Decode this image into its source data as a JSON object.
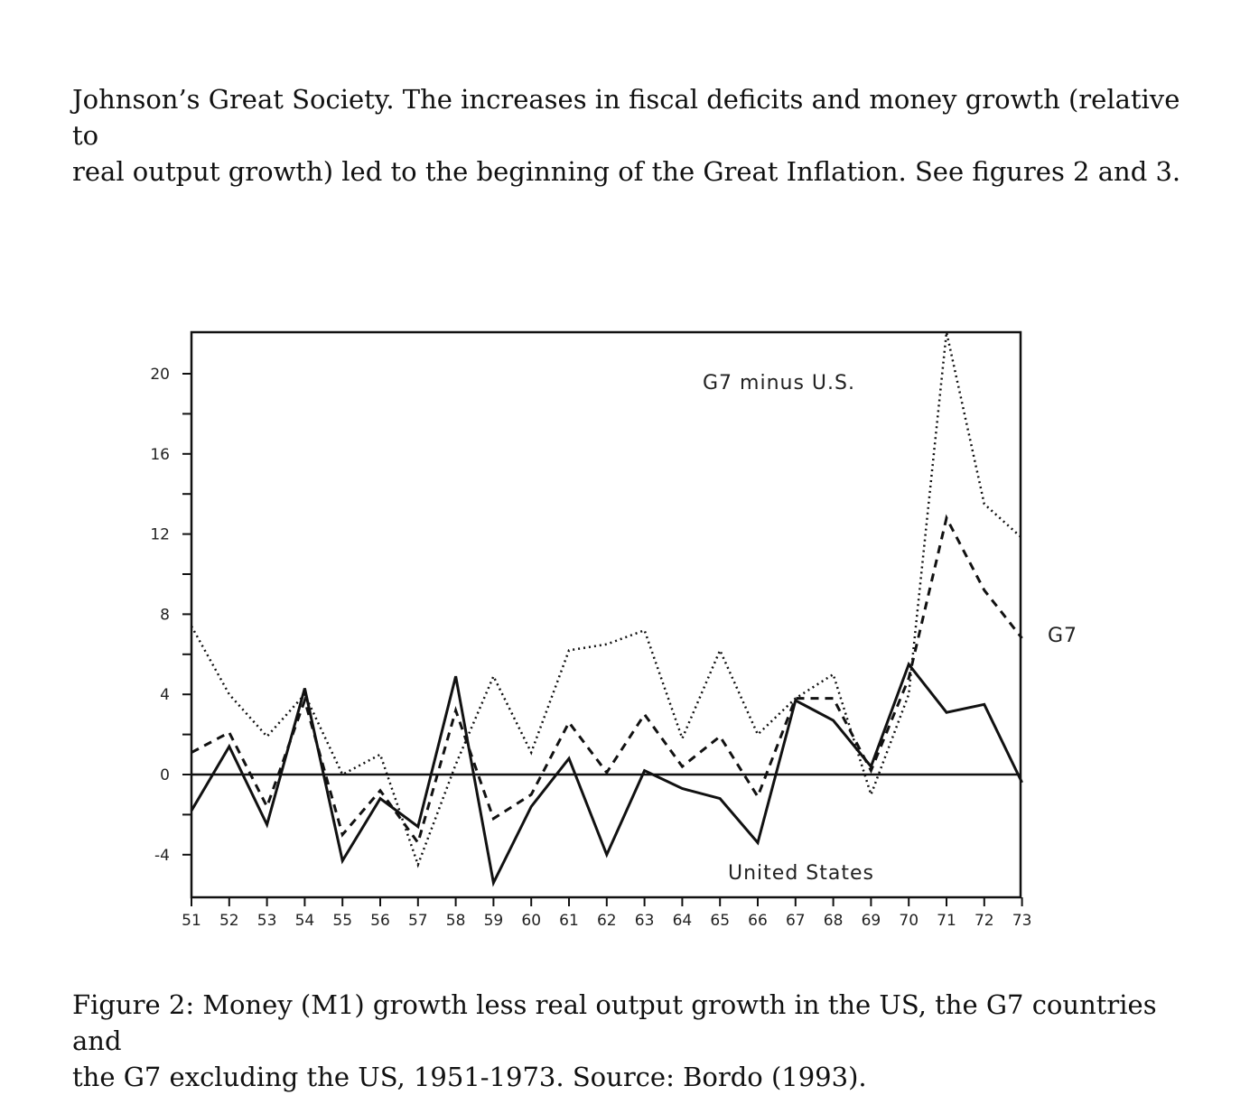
{
  "paragraph": {
    "line1": "Johnson’s Great Society. The increases in fiscal deficits and money growth (relative to",
    "line2": "real output growth) led to the beginning of the Great Inflation. See figures 2 and 3."
  },
  "caption": {
    "line1": "Figure 2: Money (M1) growth less real output growth in the US, the G7 countries and",
    "line2": "the G7 excluding the US, 1951-1973. Source: Bordo (1993)."
  },
  "chart_data": {
    "type": "line",
    "x": [
      "51",
      "52",
      "53",
      "54",
      "55",
      "56",
      "57",
      "58",
      "59",
      "60",
      "61",
      "62",
      "63",
      "64",
      "65",
      "66",
      "67",
      "68",
      "69",
      "70",
      "71",
      "72",
      "73"
    ],
    "ylim": [
      -6,
      22
    ],
    "yticks": [
      "20",
      "16",
      "12",
      "8",
      "4",
      "0",
      "-4"
    ],
    "series": [
      {
        "name": "United States",
        "style": "solid",
        "values": [
          -1.8,
          1.4,
          -2.5,
          4.3,
          -4.3,
          -1.2,
          -2.6,
          4.9,
          -5.4,
          -1.6,
          0.8,
          -4.0,
          0.2,
          -0.7,
          -1.2,
          -3.4,
          3.7,
          2.7,
          0.4,
          5.5,
          3.1,
          3.5,
          -0.4
        ]
      },
      {
        "name": "G7",
        "style": "dashed",
        "values": [
          1.1,
          2.1,
          -1.6,
          3.7,
          -3.0,
          -0.8,
          -3.4,
          3.2,
          -2.2,
          -1.0,
          2.6,
          0.1,
          3.0,
          0.4,
          1.9,
          -1.1,
          3.8,
          3.8,
          0.2,
          4.8,
          12.8,
          9.2,
          6.8
        ]
      },
      {
        "name": "G7 minus U.S.",
        "style": "dotted",
        "values": [
          7.4,
          4.0,
          1.9,
          4.0,
          0.0,
          1.0,
          -4.5,
          0.5,
          4.9,
          1.1,
          6.2,
          6.5,
          7.2,
          1.8,
          6.2,
          2.0,
          3.8,
          5.0,
          -1.0,
          4.0,
          22.5,
          13.5,
          11.8
        ]
      }
    ]
  }
}
